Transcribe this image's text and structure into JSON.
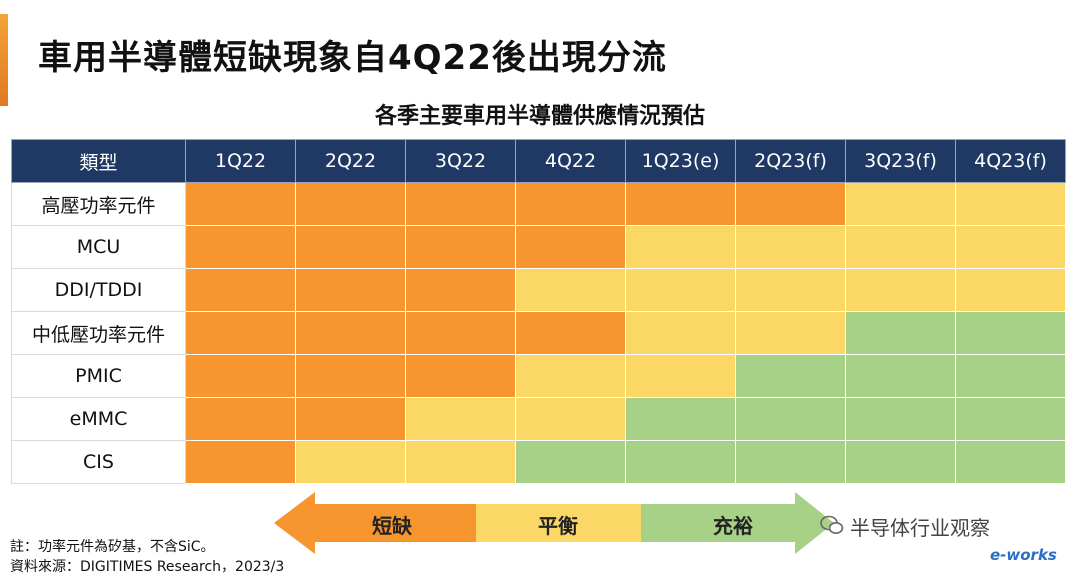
{
  "title": "車用半導體短缺現象自4Q22後出現分流",
  "chart_data": {
    "type": "heatmap",
    "title": "各季主要車用半導體供應情況預估",
    "corner_label": "類型",
    "columns": [
      "1Q22",
      "2Q22",
      "3Q22",
      "4Q22",
      "1Q23(e)",
      "2Q23(f)",
      "3Q23(f)",
      "4Q23(f)"
    ],
    "rows": [
      {
        "label": "高壓功率元件",
        "values": [
          "短缺",
          "短缺",
          "短缺",
          "短缺",
          "短缺",
          "短缺",
          "平衡",
          "平衡"
        ]
      },
      {
        "label": "MCU",
        "values": [
          "短缺",
          "短缺",
          "短缺",
          "短缺",
          "平衡",
          "平衡",
          "平衡",
          "平衡"
        ]
      },
      {
        "label": "DDI/TDDI",
        "values": [
          "短缺",
          "短缺",
          "短缺",
          "平衡",
          "平衡",
          "平衡",
          "平衡",
          "平衡"
        ]
      },
      {
        "label": "中低壓功率元件",
        "values": [
          "短缺",
          "短缺",
          "短缺",
          "短缺",
          "平衡",
          "平衡",
          "充裕",
          "充裕"
        ]
      },
      {
        "label": "PMIC",
        "values": [
          "短缺",
          "短缺",
          "短缺",
          "平衡",
          "平衡",
          "充裕",
          "充裕",
          "充裕"
        ]
      },
      {
        "label": "eMMC",
        "values": [
          "短缺",
          "短缺",
          "平衡",
          "平衡",
          "充裕",
          "充裕",
          "充裕",
          "充裕"
        ]
      },
      {
        "label": "CIS",
        "values": [
          "短缺",
          "平衡",
          "平衡",
          "充裕",
          "充裕",
          "充裕",
          "充裕",
          "充裕"
        ]
      }
    ],
    "legend": [
      {
        "label": "短缺",
        "color": "#f7952f"
      },
      {
        "label": "平衡",
        "color": "#fbd766"
      },
      {
        "label": "充裕",
        "color": "#a6d187"
      }
    ]
  },
  "notes": {
    "note1": "註：功率元件為矽基，不含SiC。",
    "source": "資料來源：DIGITIMES Research，2023/3"
  },
  "watermark": {
    "text": "半导体行业观察",
    "logo": "e-works"
  }
}
